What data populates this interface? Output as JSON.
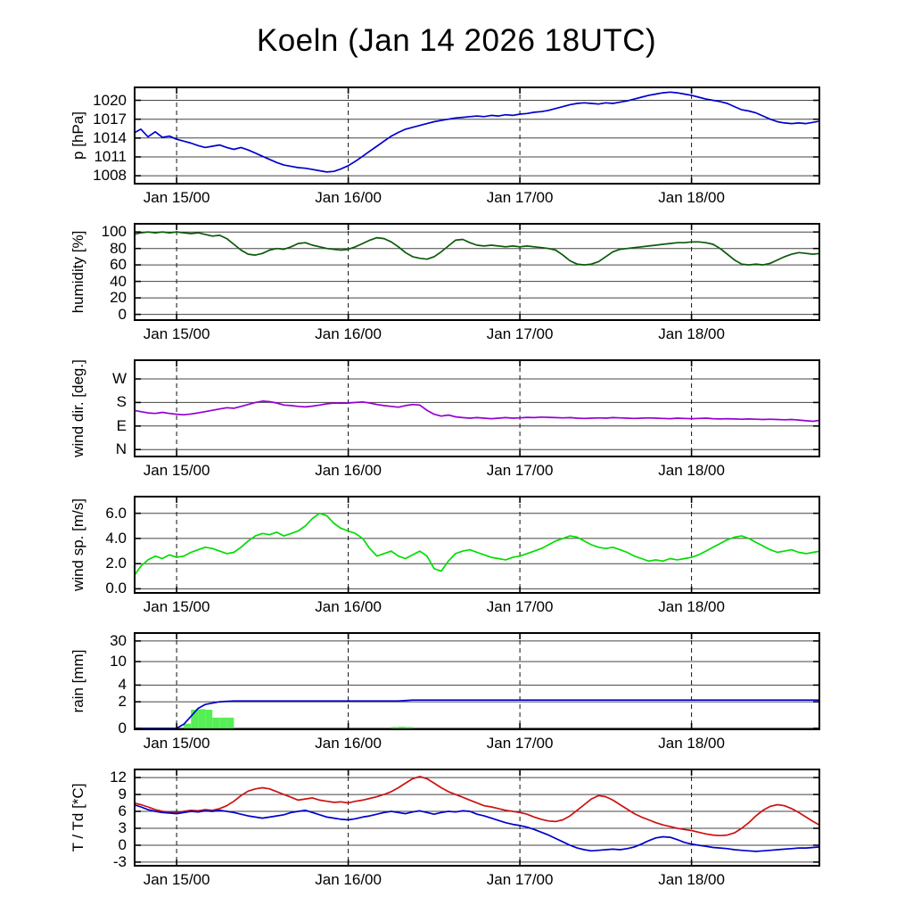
{
  "title": "Koeln (Jan 14 2026 18UTC)",
  "colors": {
    "pressure": "#0000cd",
    "humidity": "#0a5a0a",
    "wind_direction": "#9400d3",
    "wind_speed": "#00dd00",
    "rain_line": "#0000cd",
    "rain_bars": "#55ee55",
    "temperature": "#cc1111",
    "dewpoint": "#0000cd"
  },
  "x_axis": {
    "hours_total": 96,
    "start_label": "Jan 14 18UTC",
    "ticks": [
      {
        "hour": 6,
        "label": "Jan 15/00"
      },
      {
        "hour": 30,
        "label": "Jan 16/00"
      },
      {
        "hour": 54,
        "label": "Jan 17/00"
      },
      {
        "hour": 78,
        "label": "Jan 18/00"
      }
    ]
  },
  "chart_data": [
    {
      "type": "line",
      "id": "pressure",
      "ylabel": "p [hPa]",
      "ylim": [
        1006.6,
        1022.2
      ],
      "grid": true,
      "yticks": [
        {
          "v": 1020,
          "label": "1020"
        },
        {
          "v": 1017,
          "label": "1017"
        },
        {
          "v": 1014,
          "label": "1014"
        },
        {
          "v": 1011,
          "label": "1011"
        },
        {
          "v": 1008,
          "label": "1008"
        }
      ],
      "series": [
        {
          "name": "pressure",
          "color": "#0000cd",
          "values": [
            1014.8,
            1015.4,
            1014.2,
            1015.0,
            1014.1,
            1014.3,
            1013.8,
            1013.5,
            1013.2,
            1012.8,
            1012.5,
            1012.7,
            1012.9,
            1012.5,
            1012.2,
            1012.5,
            1012.1,
            1011.6,
            1011.1,
            1010.6,
            1010.1,
            1009.7,
            1009.5,
            1009.3,
            1009.2,
            1009.0,
            1008.8,
            1008.6,
            1008.7,
            1009.1,
            1009.6,
            1010.3,
            1011.1,
            1011.9,
            1012.7,
            1013.5,
            1014.3,
            1014.9,
            1015.4,
            1015.7,
            1016.0,
            1016.3,
            1016.6,
            1016.8,
            1017.0,
            1017.2,
            1017.3,
            1017.4,
            1017.5,
            1017.4,
            1017.6,
            1017.5,
            1017.7,
            1017.6,
            1017.8,
            1017.9,
            1018.1,
            1018.2,
            1018.4,
            1018.7,
            1019.0,
            1019.3,
            1019.5,
            1019.6,
            1019.5,
            1019.4,
            1019.6,
            1019.5,
            1019.7,
            1019.9,
            1020.2,
            1020.5,
            1020.8,
            1021.0,
            1021.2,
            1021.3,
            1021.2,
            1021.0,
            1020.8,
            1020.5,
            1020.2,
            1020.0,
            1019.8,
            1019.5,
            1019.0,
            1018.5,
            1018.3,
            1018.0,
            1017.5,
            1017.0,
            1016.6,
            1016.4,
            1016.3,
            1016.4,
            1016.3,
            1016.5,
            1016.7
          ]
        }
      ]
    },
    {
      "type": "line",
      "id": "humidity",
      "ylabel": "humidity [%]",
      "ylim": [
        -8,
        111
      ],
      "grid": true,
      "yticks": [
        {
          "v": 100,
          "label": "100"
        },
        {
          "v": 80,
          "label": "80"
        },
        {
          "v": 60,
          "label": "60"
        },
        {
          "v": 40,
          "label": "40"
        },
        {
          "v": 20,
          "label": "20"
        },
        {
          "v": 0,
          "label": "0"
        }
      ],
      "series": [
        {
          "name": "humidity",
          "color": "#0a5a0a",
          "values": [
            97,
            99,
            100,
            99,
            100,
            99,
            100,
            99,
            98,
            99,
            97,
            95,
            96,
            92,
            85,
            78,
            73,
            72,
            74,
            78,
            80,
            79,
            82,
            86,
            87,
            84,
            82,
            80,
            79,
            78,
            79,
            82,
            86,
            90,
            93,
            92,
            88,
            82,
            75,
            70,
            68,
            67,
            70,
            76,
            83,
            90,
            91,
            87,
            84,
            83,
            84,
            83,
            82,
            83,
            82,
            83,
            82,
            81,
            80,
            78,
            72,
            65,
            61,
            60,
            61,
            64,
            70,
            76,
            79,
            80,
            81,
            82,
            83,
            84,
            85,
            86,
            87,
            87,
            88,
            88,
            87,
            85,
            80,
            73,
            66,
            61,
            60,
            61,
            60,
            62,
            66,
            70,
            73,
            75,
            74,
            73,
            74
          ]
        }
      ]
    },
    {
      "type": "line",
      "id": "wind_direction",
      "ylabel": "wind dir. [deg.]",
      "ylim": [
        -30,
        345
      ],
      "grid": true,
      "yticks": [
        {
          "v": 270,
          "label": "W"
        },
        {
          "v": 180,
          "label": "S"
        },
        {
          "v": 90,
          "label": "E"
        },
        {
          "v": 0,
          "label": "N"
        }
      ],
      "series": [
        {
          "name": "wind_dir",
          "color": "#9400d3",
          "values": [
            150,
            145,
            140,
            138,
            142,
            138,
            135,
            133,
            136,
            140,
            145,
            150,
            155,
            160,
            158,
            165,
            172,
            180,
            185,
            183,
            178,
            170,
            168,
            165,
            163,
            166,
            170,
            175,
            178,
            177,
            178,
            180,
            182,
            178,
            172,
            168,
            165,
            162,
            168,
            172,
            170,
            150,
            135,
            128,
            132,
            125,
            122,
            120,
            122,
            120,
            118,
            120,
            122,
            120,
            121,
            123,
            122,
            124,
            123,
            122,
            121,
            122,
            120,
            119,
            120,
            121,
            120,
            122,
            121,
            120,
            119,
            120,
            121,
            120,
            119,
            118,
            120,
            119,
            118,
            119,
            120,
            118,
            117,
            118,
            117,
            116,
            117,
            116,
            115,
            116,
            115,
            114,
            115,
            113,
            110,
            108,
            112
          ]
        }
      ]
    },
    {
      "type": "line",
      "id": "wind_speed",
      "ylabel": "wind sp. [m/s]",
      "ylim": [
        -0.4,
        7.4
      ],
      "grid": true,
      "yticks": [
        {
          "v": 6,
          "label": "6.0"
        },
        {
          "v": 4,
          "label": "4.0"
        },
        {
          "v": 2,
          "label": "2.0"
        },
        {
          "v": 0,
          "label": "0.0"
        }
      ],
      "series": [
        {
          "name": "wind_speed",
          "color": "#00dd00",
          "values": [
            1.0,
            1.8,
            2.3,
            2.6,
            2.4,
            2.7,
            2.5,
            2.6,
            2.9,
            3.1,
            3.3,
            3.2,
            3.0,
            2.8,
            2.9,
            3.3,
            3.8,
            4.2,
            4.4,
            4.3,
            4.5,
            4.2,
            4.4,
            4.6,
            5.0,
            5.6,
            6.0,
            5.8,
            5.2,
            4.8,
            4.6,
            4.4,
            4.0,
            3.2,
            2.6,
            2.8,
            3.0,
            2.6,
            2.4,
            2.7,
            3.0,
            2.6,
            1.6,
            1.4,
            2.2,
            2.8,
            3.0,
            3.1,
            2.9,
            2.7,
            2.5,
            2.4,
            2.3,
            2.5,
            2.6,
            2.8,
            3.0,
            3.2,
            3.5,
            3.8,
            4.0,
            4.2,
            4.1,
            3.8,
            3.5,
            3.3,
            3.2,
            3.3,
            3.1,
            2.9,
            2.6,
            2.4,
            2.2,
            2.3,
            2.2,
            2.4,
            2.3,
            2.4,
            2.5,
            2.7,
            3.0,
            3.3,
            3.6,
            3.9,
            4.1,
            4.2,
            4.0,
            3.7,
            3.4,
            3.1,
            2.9,
            3.0,
            3.1,
            2.9,
            2.8,
            2.9,
            3.0
          ]
        }
      ]
    },
    {
      "type": "mixed",
      "id": "rain",
      "ylabel": "rain [mm]",
      "y_anchors": [
        [
          0,
          0.02
        ],
        [
          2,
          0.29
        ],
        [
          4,
          0.46
        ],
        [
          10,
          0.7
        ],
        [
          30,
          0.91
        ]
      ],
      "grid": true,
      "yticks": [
        {
          "v": 30,
          "label": "30"
        },
        {
          "v": 10,
          "label": "10"
        },
        {
          "v": 4,
          "label": "4"
        },
        {
          "v": 2,
          "label": "2"
        },
        {
          "v": 0,
          "label": "0"
        }
      ],
      "bars": {
        "color": "#55ee55",
        "values": [
          {
            "hour": 7,
            "value": 0.35
          },
          {
            "hour": 8,
            "value": 1.4
          },
          {
            "hour": 9,
            "value": 1.45
          },
          {
            "hour": 10,
            "value": 1.4
          },
          {
            "hour": 11,
            "value": 0.8
          },
          {
            "hour": 12,
            "value": 0.8
          },
          {
            "hour": 13,
            "value": 0.8
          },
          {
            "hour": 36,
            "value": 0.1
          },
          {
            "hour": 37,
            "value": 0.12
          },
          {
            "hour": 38,
            "value": 0.1
          }
        ]
      },
      "series": [
        {
          "name": "rain_accum",
          "color": "#0000cd",
          "values": [
            0,
            0,
            0,
            0,
            0,
            0,
            0,
            0.3,
            0.9,
            1.5,
            1.8,
            1.9,
            2.0,
            2.05,
            2.1,
            2.1,
            2.1,
            2.1,
            2.1,
            2.1,
            2.1,
            2.1,
            2.1,
            2.1,
            2.1,
            2.1,
            2.1,
            2.1,
            2.1,
            2.1,
            2.1,
            2.1,
            2.1,
            2.1,
            2.1,
            2.1,
            2.1,
            2.1,
            2.15,
            2.2,
            2.2,
            2.2,
            2.2,
            2.2,
            2.2,
            2.2,
            2.2,
            2.2,
            2.2,
            2.2,
            2.2,
            2.2,
            2.2,
            2.2,
            2.2,
            2.2,
            2.2,
            2.2,
            2.2,
            2.2,
            2.2,
            2.2,
            2.2,
            2.2,
            2.2,
            2.2,
            2.2,
            2.2,
            2.2,
            2.2,
            2.2,
            2.2,
            2.2,
            2.2,
            2.2,
            2.2,
            2.2,
            2.2,
            2.2,
            2.2,
            2.2,
            2.2,
            2.2,
            2.2,
            2.2,
            2.2,
            2.2,
            2.2,
            2.2,
            2.2,
            2.2,
            2.2,
            2.2,
            2.2,
            2.2,
            2.2,
            2.2
          ]
        }
      ]
    },
    {
      "type": "line",
      "id": "temperature",
      "ylabel": "T / Td [*C]",
      "ylim": [
        -3.8,
        13.6
      ],
      "grid": true,
      "yticks": [
        {
          "v": 12,
          "label": "12"
        },
        {
          "v": 9,
          "label": "9"
        },
        {
          "v": 6,
          "label": "6"
        },
        {
          "v": 3,
          "label": "3"
        },
        {
          "v": 0,
          "label": "0"
        },
        {
          "v": -3,
          "label": "-3"
        }
      ],
      "series": [
        {
          "name": "temperature",
          "color": "#cc1111",
          "values": [
            7.5,
            7.2,
            6.8,
            6.3,
            6.0,
            5.9,
            5.8,
            6.0,
            6.2,
            6.1,
            6.3,
            6.2,
            6.5,
            7.0,
            7.8,
            8.8,
            9.6,
            10.0,
            10.2,
            10.0,
            9.5,
            9.0,
            8.5,
            8.0,
            8.2,
            8.4,
            8.0,
            7.8,
            7.6,
            7.7,
            7.5,
            7.8,
            8.0,
            8.3,
            8.6,
            9.0,
            9.5,
            10.2,
            11.0,
            11.8,
            12.2,
            11.8,
            11.0,
            10.2,
            9.5,
            9.0,
            8.5,
            8.0,
            7.5,
            7.0,
            6.8,
            6.5,
            6.2,
            6.0,
            5.8,
            5.5,
            5.0,
            4.6,
            4.3,
            4.2,
            4.5,
            5.2,
            6.2,
            7.2,
            8.2,
            8.8,
            8.6,
            8.0,
            7.2,
            6.4,
            5.6,
            5.0,
            4.5,
            4.0,
            3.6,
            3.3,
            3.0,
            2.8,
            2.6,
            2.3,
            2.0,
            1.8,
            1.7,
            1.8,
            2.2,
            3.0,
            4.0,
            5.2,
            6.2,
            6.9,
            7.2,
            7.0,
            6.5,
            5.8,
            5.0,
            4.2,
            3.5
          ]
        },
        {
          "name": "dewpoint",
          "color": "#0000cd",
          "values": [
            7.2,
            6.8,
            6.3,
            6.0,
            5.8,
            5.7,
            5.6,
            5.8,
            6.0,
            5.9,
            6.1,
            6.0,
            6.2,
            6.0,
            5.8,
            5.5,
            5.2,
            5.0,
            4.8,
            5.0,
            5.2,
            5.4,
            5.8,
            6.0,
            6.2,
            5.8,
            5.4,
            5.0,
            4.8,
            4.6,
            4.5,
            4.7,
            5.0,
            5.2,
            5.5,
            5.8,
            6.0,
            5.8,
            5.6,
            5.9,
            6.1,
            5.8,
            5.5,
            5.8,
            6.0,
            5.9,
            6.1,
            6.0,
            5.5,
            5.2,
            4.8,
            4.4,
            4.0,
            3.7,
            3.5,
            3.2,
            2.8,
            2.3,
            1.8,
            1.2,
            0.6,
            0.0,
            -0.5,
            -0.8,
            -1.0,
            -0.9,
            -0.8,
            -0.7,
            -0.8,
            -0.6,
            -0.3,
            0.2,
            0.8,
            1.3,
            1.5,
            1.4,
            1.0,
            0.5,
            0.2,
            0.0,
            -0.2,
            -0.4,
            -0.5,
            -0.6,
            -0.8,
            -0.9,
            -1.0,
            -1.1,
            -1.0,
            -0.9,
            -0.8,
            -0.7,
            -0.6,
            -0.5,
            -0.5,
            -0.4,
            -0.3
          ]
        }
      ]
    }
  ]
}
